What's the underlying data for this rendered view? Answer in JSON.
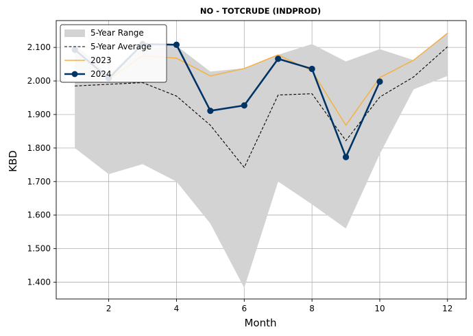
{
  "chart_data": {
    "type": "line",
    "title": "NO - TOTCRUDE (INDPROD)",
    "xlabel": "Month",
    "ylabel": "KBD",
    "xlim": [
      0.45,
      12.55
    ],
    "ylim": [
      1350,
      2180
    ],
    "x_ticks": [
      2,
      4,
      6,
      8,
      10,
      12
    ],
    "x_tick_labels": [
      "2",
      "4",
      "6",
      "8",
      "10",
      "12"
    ],
    "y_ticks": [
      1400,
      1500,
      1600,
      1700,
      1800,
      1900,
      2000,
      2100
    ],
    "y_tick_labels": [
      "1.400",
      "1.500",
      "1.600",
      "1.700",
      "1.800",
      "1.900",
      "2.000",
      "2.100"
    ],
    "grid": true,
    "legend_position": "top-left",
    "range": {
      "name": "5-Year Range",
      "color": "#d3d3d3",
      "x": [
        1,
        2,
        3,
        4,
        5,
        6,
        7,
        8,
        9,
        10,
        11,
        12
      ],
      "low": [
        1800,
        1722,
        1752,
        1700,
        1575,
        1383,
        1700,
        1632,
        1560,
        1782,
        1975,
        2015
      ],
      "high": [
        2110,
        2020,
        2110,
        2105,
        2028,
        2038,
        2078,
        2110,
        2058,
        2095,
        2062,
        2145
      ]
    },
    "series": [
      {
        "name": "5-Year Average",
        "color": "#000000",
        "dashed": true,
        "markers": false,
        "x": [
          1,
          2,
          3,
          4,
          5,
          6,
          7,
          8,
          9,
          10,
          11,
          12
        ],
        "values": [
          1985,
          1990,
          1995,
          1955,
          1868,
          1742,
          1958,
          1962,
          1822,
          1952,
          2012,
          2102
        ]
      },
      {
        "name": "2023",
        "color": "#f5b041",
        "dashed": false,
        "markers": false,
        "x": [
          1,
          2,
          3,
          4,
          5,
          6,
          7,
          8,
          9,
          10,
          11,
          12
        ],
        "values": [
          2095,
          2005,
          2075,
          2068,
          2015,
          2037,
          2078,
          2030,
          1868,
          2010,
          2062,
          2142
        ]
      },
      {
        "name": "2024",
        "color": "#003366",
        "dashed": false,
        "markers": true,
        "x": [
          1,
          2,
          3,
          4,
          5,
          6,
          7,
          8,
          9,
          10
        ],
        "values": [
          2093,
          2008,
          2110,
          2108,
          1911,
          1927,
          2066,
          2036,
          1773,
          1998
        ]
      }
    ]
  }
}
